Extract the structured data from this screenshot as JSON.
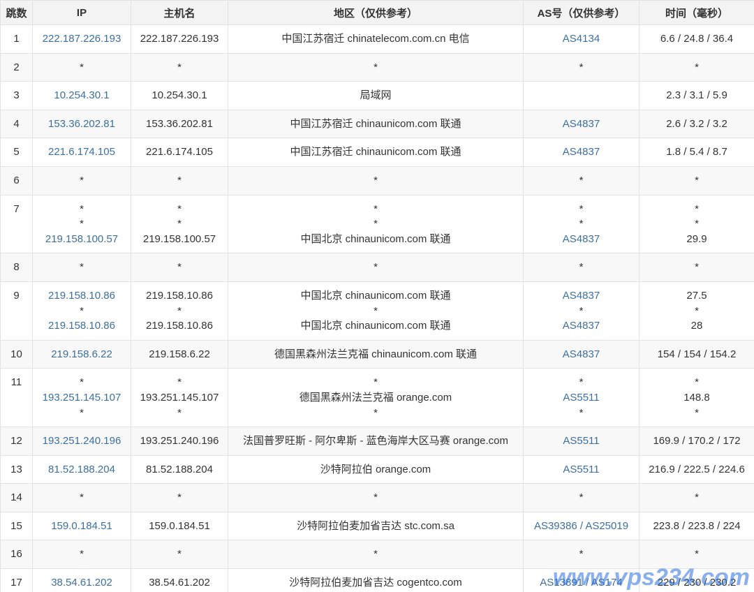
{
  "header": [
    "跳数",
    "IP",
    "主机名",
    "地区（仅供参考）",
    "AS号（仅供参考）",
    "时间（毫秒）"
  ],
  "rows": [
    {
      "hop": "1",
      "lines": [
        [
          "222.187.226.193",
          "222.187.226.193",
          "中国江苏宿迁 chinatelecom.com.cn 电信",
          "AS4134",
          "6.6 / 24.8 / 36.4"
        ]
      ]
    },
    {
      "hop": "2",
      "lines": [
        [
          "*",
          "*",
          "*",
          "*",
          "*"
        ]
      ]
    },
    {
      "hop": "3",
      "lines": [
        [
          "10.254.30.1",
          "10.254.30.1",
          "局域网",
          null,
          "2.3 / 3.1 / 5.9"
        ]
      ]
    },
    {
      "hop": "4",
      "lines": [
        [
          "153.36.202.81",
          "153.36.202.81",
          "中国江苏宿迁 chinaunicom.com 联通",
          "AS4837",
          "2.6 / 3.2 / 3.2"
        ]
      ]
    },
    {
      "hop": "5",
      "lines": [
        [
          "221.6.174.105",
          "221.6.174.105",
          "中国江苏宿迁 chinaunicom.com 联通",
          "AS4837",
          "1.8 / 5.4 / 8.7"
        ]
      ]
    },
    {
      "hop": "6",
      "lines": [
        [
          "*",
          "*",
          "*",
          "*",
          "*"
        ]
      ]
    },
    {
      "hop": "7",
      "lines": [
        [
          "*",
          "*",
          "*",
          "*",
          "*"
        ],
        [
          "*",
          "*",
          "*",
          "*",
          "*"
        ],
        [
          "219.158.100.57",
          "219.158.100.57",
          "中国北京 chinaunicom.com 联通",
          "AS4837",
          "29.9"
        ]
      ]
    },
    {
      "hop": "8",
      "lines": [
        [
          "*",
          "*",
          "*",
          "*",
          "*"
        ]
      ]
    },
    {
      "hop": "9",
      "lines": [
        [
          "219.158.10.86",
          "219.158.10.86",
          "中国北京 chinaunicom.com 联通",
          "AS4837",
          "27.5"
        ],
        [
          "*",
          "*",
          "*",
          "*",
          "*"
        ],
        [
          "219.158.10.86",
          "219.158.10.86",
          "中国北京 chinaunicom.com 联通",
          "AS4837",
          "28"
        ]
      ]
    },
    {
      "hop": "10",
      "lines": [
        [
          "219.158.6.22",
          "219.158.6.22",
          "德国黑森州法兰克福 chinaunicom.com 联通",
          "AS4837",
          "154 / 154 / 154.2"
        ]
      ]
    },
    {
      "hop": "11",
      "lines": [
        [
          "*",
          "*",
          "*",
          "*",
          "*"
        ],
        [
          "193.251.145.107",
          "193.251.145.107",
          "德国黑森州法兰克福 orange.com",
          "AS5511",
          "148.8"
        ],
        [
          "*",
          "*",
          "*",
          "*",
          "*"
        ]
      ]
    },
    {
      "hop": "12",
      "lines": [
        [
          "193.251.240.196",
          "193.251.240.196",
          "法国普罗旺斯 - 阿尔卑斯 - 蓝色海岸大区马赛 orange.com",
          "AS5511",
          "169.9 / 170.2 / 172"
        ]
      ]
    },
    {
      "hop": "13",
      "lines": [
        [
          "81.52.188.204",
          "81.52.188.204",
          "沙特阿拉伯 orange.com",
          "AS5511",
          "216.9 / 222.5 / 224.6"
        ]
      ]
    },
    {
      "hop": "14",
      "lines": [
        [
          "*",
          "*",
          "*",
          "*",
          "*"
        ]
      ]
    },
    {
      "hop": "15",
      "lines": [
        [
          "159.0.184.51",
          "159.0.184.51",
          "沙特阿拉伯麦加省吉达 stc.com.sa",
          "AS39386 / AS25019",
          "223.8 / 223.8 / 224"
        ]
      ]
    },
    {
      "hop": "16",
      "lines": [
        [
          "*",
          "*",
          "*",
          "*",
          "*"
        ]
      ]
    },
    {
      "hop": "17",
      "lines": [
        [
          "38.54.61.202",
          "38.54.61.202",
          "沙特阿拉伯麦加省吉达 cogentco.com",
          "AS13891 / AS174",
          "229 / 230 / 230.2"
        ]
      ]
    }
  ],
  "watermark": "www.vps234.com"
}
